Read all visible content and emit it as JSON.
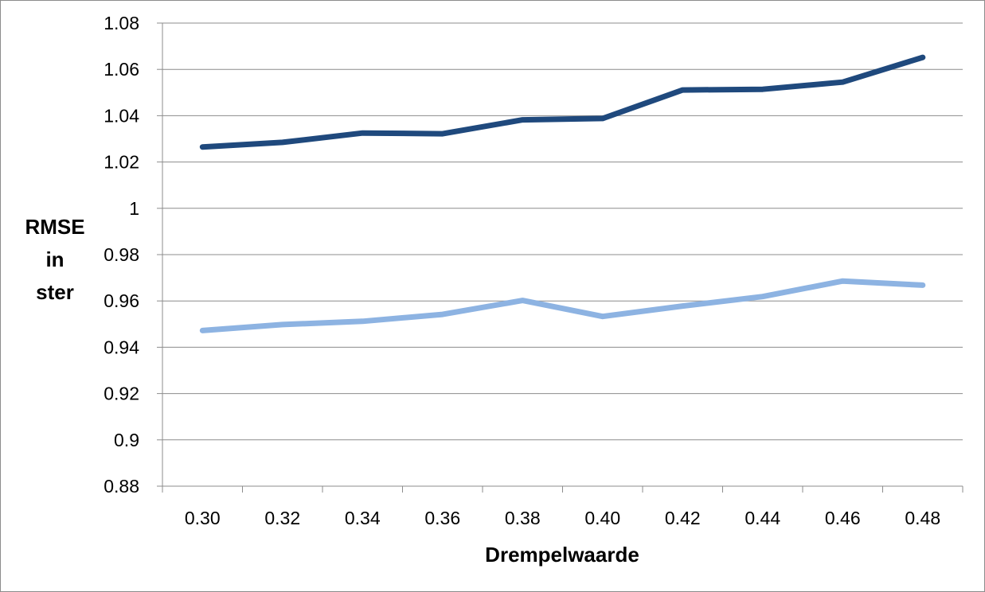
{
  "chart_data": {
    "type": "line",
    "title": "",
    "xlabel": "Drempelwaarde",
    "ylabel_lines": [
      "RMSE",
      "in",
      "ster"
    ],
    "categories": [
      "0.30",
      "0.32",
      "0.34",
      "0.36",
      "0.38",
      "0.40",
      "0.42",
      "0.44",
      "0.46",
      "0.48"
    ],
    "ylim": [
      0.88,
      1.08
    ],
    "yticks": [
      "0.88",
      "0.9",
      "0.92",
      "0.94",
      "0.96",
      "0.98",
      "1",
      "1.02",
      "1.04",
      "1.06",
      "1.08"
    ],
    "ytick_values": [
      0.88,
      0.9,
      0.92,
      0.94,
      0.96,
      0.98,
      1.0,
      1.02,
      1.04,
      1.06,
      1.08
    ],
    "grid": true,
    "legend": "none",
    "series": [
      {
        "color": "#1f497d",
        "values": [
          1.0265,
          1.0285,
          1.0325,
          1.0322,
          1.0382,
          1.0388,
          1.0511,
          1.0514,
          1.0545,
          1.0652
        ]
      },
      {
        "color": "#8db3e2",
        "values": [
          0.9472,
          0.9498,
          0.9512,
          0.9542,
          0.9602,
          0.9533,
          0.9578,
          0.9619,
          0.9686,
          0.9668
        ]
      }
    ]
  }
}
